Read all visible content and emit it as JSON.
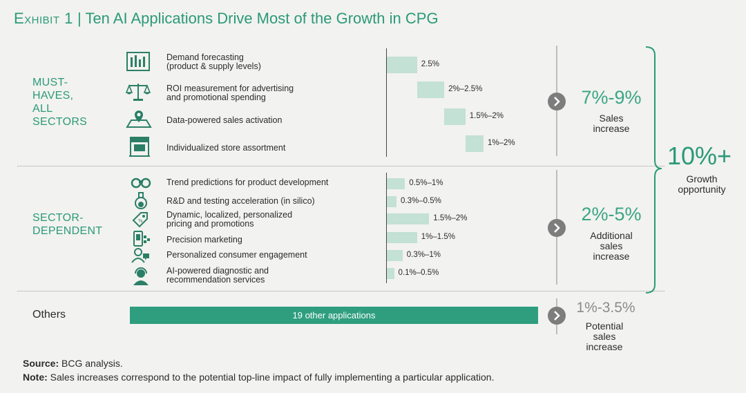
{
  "title": {
    "exhibit": "Exhibit 1",
    "separator": "|",
    "text": "Ten AI Applications Drive Most of the Growth in CPG"
  },
  "sections": {
    "must_haves": [
      "MUST-",
      "HAVES,",
      "ALL",
      "SECTORS"
    ],
    "sector_dependent": [
      "SECTOR-",
      "DEPENDENT"
    ],
    "others": "Others"
  },
  "icons": [
    "forecast-chart-icon",
    "scales-icon",
    "map-pin-icon",
    "storefront-icon",
    "binoculars-icon",
    "flask-icon",
    "price-tag-icon",
    "phone-marketing-icon",
    "consumer-engagement-icon",
    "consultant-headset-icon"
  ],
  "chart_data": {
    "type": "bar",
    "subtype": "waterfall-and-range-bars",
    "units": "% sales increase (range)",
    "groups": [
      {
        "name": "MUST-HAVES, ALL SECTORS",
        "total_label": "7%-9%",
        "total_sub": [
          "Sales",
          "increase"
        ],
        "items": [
          {
            "label": [
              "Demand forecasting",
              "(product & supply levels)"
            ],
            "value_label": "2.5%",
            "low": 2.5,
            "high": 2.5
          },
          {
            "label": [
              "ROI measurement for advertising",
              "and promotional spending"
            ],
            "value_label": "2%–2.5%",
            "low": 2.0,
            "high": 2.5
          },
          {
            "label": [
              "Data-powered sales activation"
            ],
            "value_label": "1.5%–2%",
            "low": 1.5,
            "high": 2.0
          },
          {
            "label": [
              "Individualized store assortment"
            ],
            "value_label": "1%–2%",
            "low": 1.0,
            "high": 2.0
          }
        ]
      },
      {
        "name": "SECTOR-DEPENDENT",
        "total_label": "2%-5%",
        "total_sub": [
          "Additional",
          "sales",
          "increase"
        ],
        "items": [
          {
            "label": [
              "Trend predictions for product development"
            ],
            "value_label": "0.5%–1%",
            "low": 0.5,
            "high": 1.0
          },
          {
            "label": [
              "R&D and testing acceleration (in silico)"
            ],
            "value_label": "0.3%–0.5%",
            "low": 0.3,
            "high": 0.5
          },
          {
            "label": [
              "Dynamic, localized, personalized",
              "pricing and promotions"
            ],
            "value_label": "1.5%–2%",
            "low": 1.5,
            "high": 2.0
          },
          {
            "label": [
              "Precision marketing"
            ],
            "value_label": "1%–1.5%",
            "low": 1.0,
            "high": 1.5
          },
          {
            "label": [
              "Personalized consumer engagement"
            ],
            "value_label": "0.3%–1%",
            "low": 0.3,
            "high": 1.0
          },
          {
            "label": [
              "AI-powered diagnostic and",
              "recommendation services"
            ],
            "value_label": "0.1%–0.5%",
            "low": 0.1,
            "high": 0.5
          }
        ]
      }
    ],
    "others": {
      "bar_label": "19 other applications",
      "total_label": "1%-3.5%",
      "total_sub": [
        "Potential",
        "sales",
        "increase"
      ]
    },
    "growth": {
      "label": "10%+",
      "sub": [
        "Growth",
        "opportunity"
      ]
    }
  },
  "footer": {
    "source_label": "Source:",
    "source_text": "BCG analysis.",
    "note_label": "Note:",
    "note_text": "Sales increases correspond to the potential top-line impact of fully implementing a particular application."
  },
  "colors": {
    "accent": "#2a9a78",
    "bar_light": "#c3e1d4",
    "bar_dark": "#2e9e7f",
    "arrow": "#7d7d7d",
    "grey_text": "#8b8b8b"
  }
}
